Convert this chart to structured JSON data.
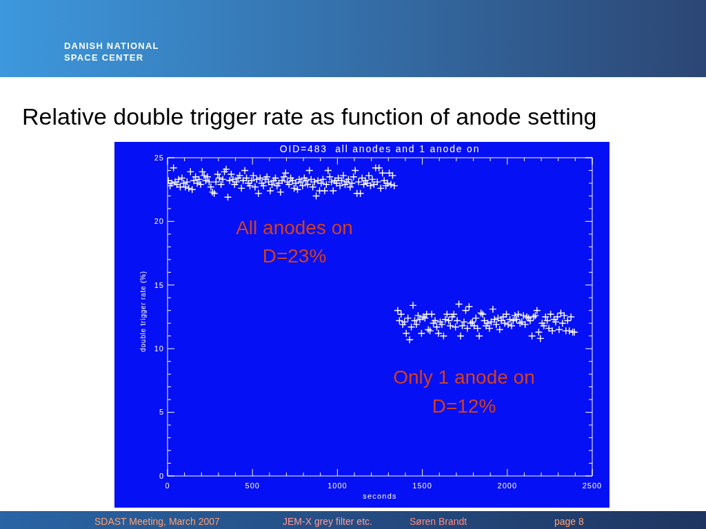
{
  "chart_data": {
    "type": "scatter",
    "title": "Relative double trigger rate as function of anode setting",
    "subtitle": "OID=483  all anodes and 1 anode on",
    "xlabel": "seconds",
    "ylabel": "double trigger rate (%)",
    "annotations": [
      "DANISH NATIONAL\nSPACE CENTER",
      "All anodes on\nD=23%",
      "Only 1 anode on\nD=12%",
      "SDAST Meeting, March 2007",
      "JEM-X grey filter etc.",
      "Søren Brandt",
      "page 8"
    ],
    "xlim": [
      0,
      2500
    ],
    "xticks": [
      0,
      {
        "value": 100,
        "label": null
      },
      {
        "value": 200,
        "label": null
      },
      {
        "value": 300,
        "label": null
      },
      {
        "value": 400,
        "label": null
      },
      500,
      {
        "value": 600,
        "label": null
      },
      {
        "value": 700,
        "label": null
      },
      {
        "value": 800,
        "label": null
      },
      {
        "value": 900,
        "label": null
      },
      1000,
      {
        "value": 1100,
        "label": null
      },
      {
        "value": 1200,
        "label": null
      },
      {
        "value": 1300,
        "label": null
      },
      {
        "value": 1400,
        "label": null
      },
      1500,
      {
        "value": 1600,
        "label": null
      },
      {
        "value": 1700,
        "label": null
      },
      {
        "value": 1800,
        "label": null
      },
      {
        "value": 1900,
        "label": null
      },
      2000,
      {
        "value": 2100,
        "label": null
      },
      {
        "value": 2200,
        "label": null
      },
      {
        "value": 2300,
        "label": null
      },
      {
        "value": 2400,
        "label": null
      },
      2500
    ],
    "ylim": [
      0,
      25
    ],
    "yticks": [
      0,
      {
        "value": 1,
        "label": null
      },
      {
        "value": 2,
        "label": null
      },
      {
        "value": 3,
        "label": null
      },
      {
        "value": 4,
        "label": null
      },
      5,
      {
        "value": 6,
        "label": null
      },
      {
        "value": 7,
        "label": null
      },
      {
        "value": 8,
        "label": null
      },
      {
        "value": 9,
        "label": null
      },
      10,
      {
        "value": 11,
        "label": null
      },
      {
        "value": 12,
        "label": null
      },
      {
        "value": 13,
        "label": null
      },
      {
        "value": 14,
        "label": null
      },
      15,
      {
        "value": 16,
        "label": null
      },
      {
        "value": 17,
        "label": null
      },
      {
        "value": 18,
        "label": null
      },
      {
        "value": 19,
        "label": null
      },
      20,
      {
        "value": 21,
        "label": null
      },
      {
        "value": 22,
        "label": null
      },
      {
        "value": 23,
        "label": null
      },
      {
        "value": 24,
        "label": null
      },
      25
    ],
    "marker": "cross",
    "series": [
      {
        "color": "#ffffff",
        "x": [
          5,
          15,
          25,
          35,
          45,
          55,
          65,
          75,
          85,
          95,
          105,
          115,
          125,
          135,
          145,
          155,
          165,
          175,
          185,
          195,
          205,
          215,
          225,
          235,
          245,
          255,
          265,
          275,
          285,
          295,
          305,
          315,
          325,
          335,
          345,
          355,
          365,
          375,
          385,
          395,
          405,
          415,
          425,
          435,
          445,
          455,
          465,
          475,
          485,
          495,
          505,
          515,
          525,
          535,
          545,
          555,
          565,
          575,
          585,
          595,
          605,
          615,
          625,
          635,
          645,
          655,
          665,
          675,
          685,
          695,
          705,
          715,
          725,
          735,
          745,
          755,
          765,
          775,
          785,
          795,
          805,
          815,
          825,
          835,
          845,
          855,
          865,
          875,
          885,
          895,
          905,
          915,
          925,
          935,
          945,
          955,
          965,
          975,
          985,
          995,
          1005,
          1015,
          1025,
          1035,
          1045,
          1055,
          1065,
          1075,
          1085,
          1095,
          1105,
          1115,
          1125,
          1135,
          1145,
          1155,
          1165,
          1175,
          1185,
          1195,
          1205,
          1215,
          1225,
          1235,
          1245,
          1255,
          1265,
          1275,
          1285,
          1295,
          1305,
          1315,
          1325,
          1335
        ],
        "values": [
          23.2,
          22.8,
          23.0,
          24.2,
          23.1,
          22.9,
          23.3,
          22.7,
          23.4,
          23.0,
          22.7,
          23.1,
          22.6,
          23.9,
          22.5,
          23.2,
          23.5,
          23.0,
          23.3,
          22.9,
          23.9,
          23.6,
          23.2,
          23.5,
          23.1,
          22.7,
          22.3,
          22.2,
          23.1,
          23.7,
          23.4,
          22.9,
          23.3,
          23.9,
          24.1,
          21.9,
          23.2,
          23.7,
          23.3,
          22.9,
          23.1,
          23.4,
          23.6,
          22.6,
          23.2,
          24.0,
          23.4,
          23.0,
          22.8,
          23.2,
          23.6,
          22.7,
          23.3,
          22.2,
          23.4,
          23.0,
          22.8,
          23.3,
          23.5,
          23.1,
          22.4,
          22.9,
          23.2,
          23.4,
          22.8,
          23.0,
          22.3,
          23.2,
          23.5,
          23.8,
          23.1,
          22.9,
          23.4,
          23.2,
          22.6,
          23.0,
          22.5,
          23.3,
          23.1,
          22.8,
          23.4,
          23.2,
          22.9,
          24.0,
          23.3,
          22.7,
          23.1,
          22.0,
          23.2,
          22.4,
          23.0,
          23.3,
          22.4,
          22.9,
          24.0,
          23.5,
          23.1,
          22.4,
          23.2,
          23.0,
          23.4,
          22.8,
          23.2,
          23.6,
          22.9,
          23.1,
          23.3,
          22.7,
          23.0,
          23.5,
          24.0,
          22.2,
          23.1,
          22.2,
          23.4,
          22.9,
          23.2,
          23.0,
          23.6,
          22.8,
          23.3,
          22.9,
          24.2,
          23.1,
          24.2,
          22.6,
          23.8,
          23.2,
          22.8,
          23.0,
          23.8,
          22.9,
          23.6,
          22.8
        ]
      },
      {
        "color": "#ffffff",
        "x": [
          1355,
          1365,
          1375,
          1385,
          1395,
          1405,
          1415,
          1425,
          1435,
          1445,
          1455,
          1465,
          1475,
          1485,
          1495,
          1505,
          1515,
          1525,
          1535,
          1545,
          1555,
          1565,
          1575,
          1585,
          1595,
          1605,
          1615,
          1625,
          1635,
          1645,
          1655,
          1665,
          1675,
          1685,
          1695,
          1705,
          1715,
          1725,
          1735,
          1745,
          1755,
          1765,
          1775,
          1785,
          1795,
          1805,
          1815,
          1825,
          1835,
          1845,
          1855,
          1865,
          1875,
          1885,
          1895,
          1905,
          1915,
          1925,
          1935,
          1945,
          1955,
          1965,
          1975,
          1985,
          1995,
          2005,
          2015,
          2025,
          2035,
          2045,
          2055,
          2065,
          2075,
          2085,
          2095,
          2105,
          2115,
          2125,
          2135,
          2145,
          2155,
          2165,
          2175,
          2185,
          2195,
          2205,
          2215,
          2225,
          2235,
          2245,
          2255,
          2265,
          2275,
          2285,
          2295,
          2305,
          2315,
          2325,
          2335,
          2345,
          2355,
          2365,
          2375,
          2385,
          2395
        ],
        "values": [
          13.0,
          12.2,
          12.7,
          11.9,
          12.1,
          11.2,
          12.4,
          10.7,
          11.7,
          13.4,
          12.2,
          11.9,
          12.6,
          12.3,
          11.2,
          12.5,
          12.4,
          12.7,
          11.5,
          11.4,
          12.7,
          12.0,
          12.2,
          11.7,
          11.2,
          12.1,
          11.9,
          11.0,
          12.3,
          12.7,
          12.2,
          11.8,
          12.5,
          12.7,
          11.7,
          12.2,
          13.5,
          11.0,
          11.8,
          12.1,
          13.0,
          11.6,
          13.3,
          12.0,
          12.1,
          11.8,
          12.4,
          11.6,
          11.0,
          12.8,
          12.7,
          12.2,
          11.8,
          12.0,
          11.6,
          12.1,
          13.1,
          12.3,
          11.9,
          12.4,
          11.5,
          12.2,
          12.5,
          12.0,
          12.7,
          11.9,
          12.3,
          11.8,
          12.2,
          12.6,
          12.3,
          12.7,
          12.0,
          12.1,
          12.6,
          11.9,
          12.5,
          12.4,
          12.2,
          11.0,
          12.5,
          12.6,
          13.0,
          11.3,
          10.8,
          12.0,
          11.8,
          12.5,
          12.2,
          11.6,
          12.7,
          11.4,
          12.3,
          12.1,
          12.5,
          11.5,
          12.8,
          12.0,
          12.6,
          11.4,
          12.2,
          11.4,
          12.5,
          11.3,
          11.3
        ]
      }
    ]
  }
}
